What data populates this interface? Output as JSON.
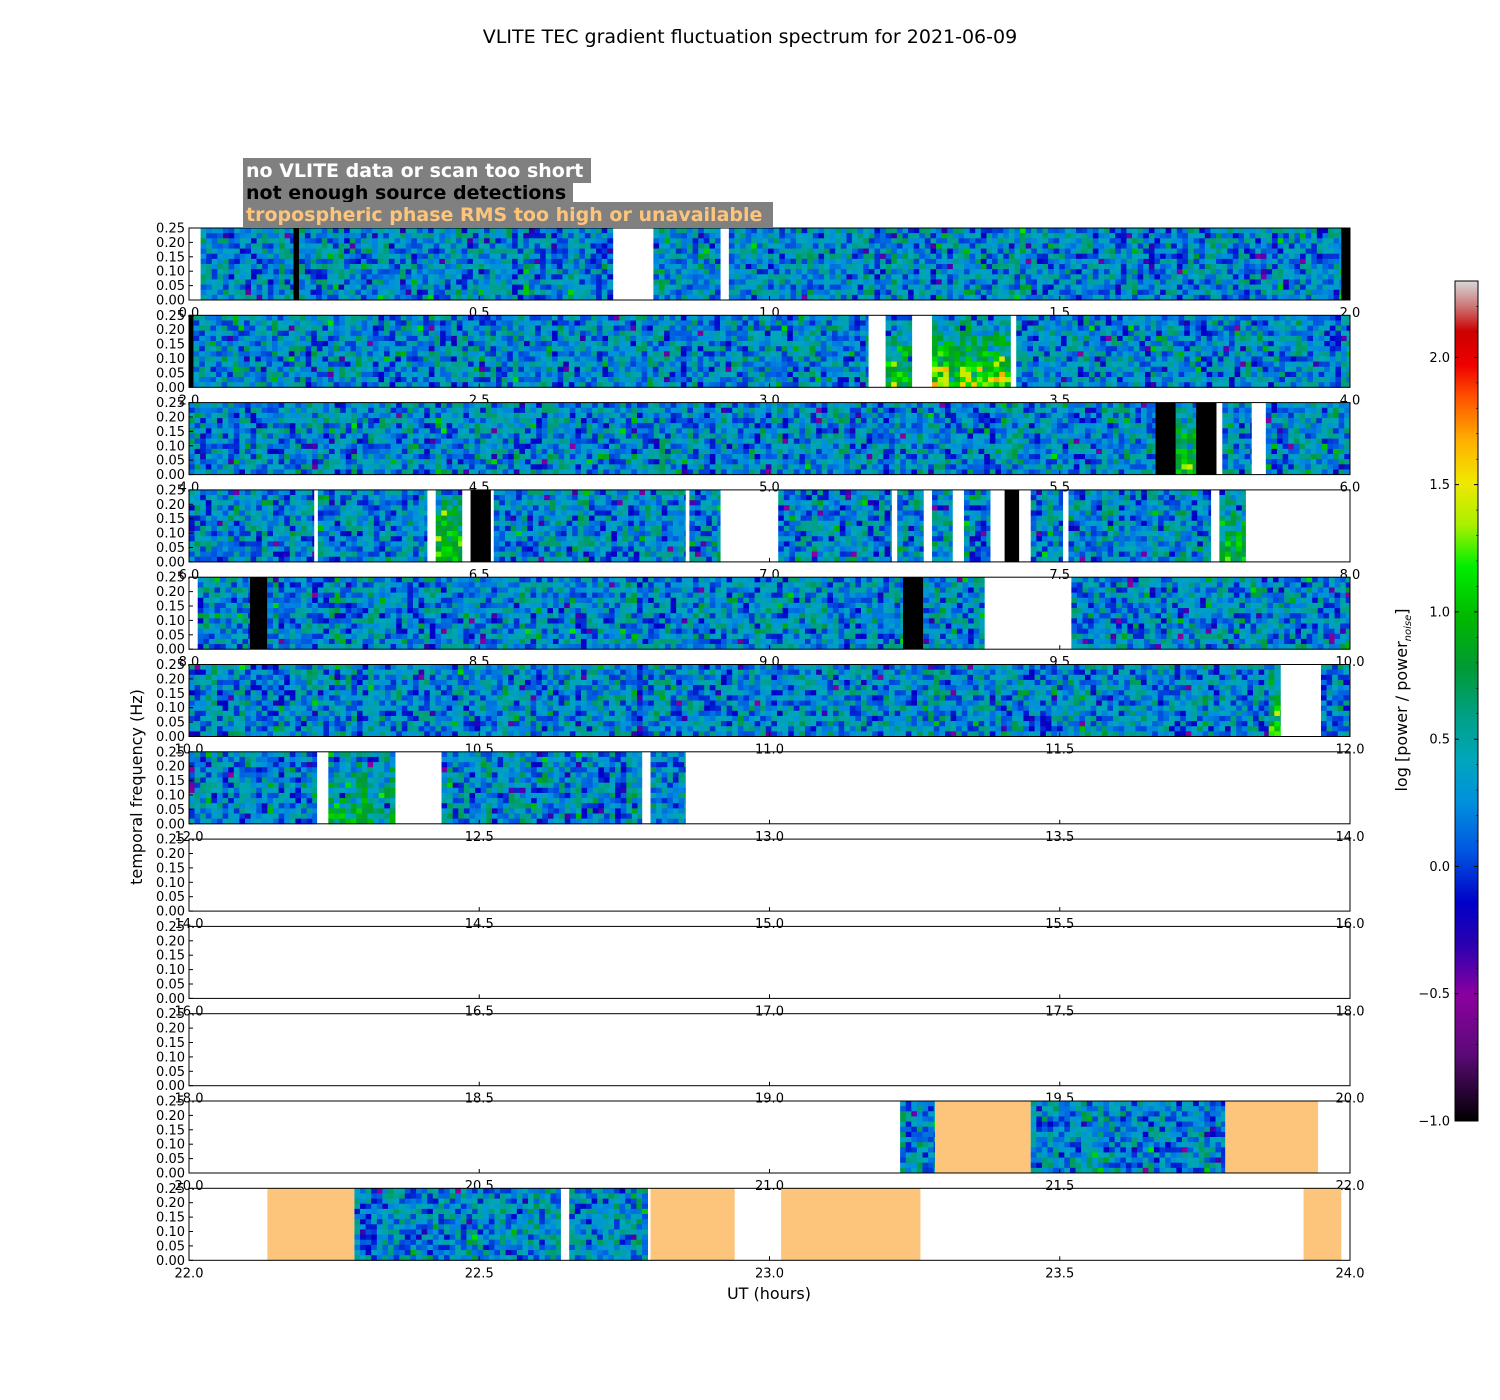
{
  "chart_data": {
    "type": "heatmap",
    "title": "VLITE TEC gradient fluctuation spectrum for 2021-06-09",
    "xlabel": "UT (hours)",
    "ylabel": "temporal frequency (Hz)",
    "ylim": [
      0.0,
      0.25
    ],
    "yticks": [
      "0.00",
      "0.05",
      "0.10",
      "0.15",
      "0.20",
      "0.25"
    ],
    "colorbar": {
      "label_main": "log [power / power",
      "label_sub": "noise",
      "label_end": "]",
      "range": [
        -1.0,
        2.3
      ],
      "ticks": [
        "−1.0",
        "−0.5",
        "0.0",
        "0.5",
        "1.0",
        "1.5",
        "2.0"
      ],
      "tick_values": [
        -1.0,
        -0.5,
        0.0,
        0.5,
        1.0,
        1.5,
        2.0
      ]
    },
    "legend": [
      {
        "text": "no VLITE data or scan too short",
        "color": "#ffffff",
        "flag": "nodata"
      },
      {
        "text": "not enough source detections",
        "color": "#000000",
        "flag": "nodetect"
      },
      {
        "text": "tropospheric phase RMS too high or unavailable",
        "color": "#fdc57c",
        "flag": "trop"
      }
    ],
    "panels": [
      {
        "xrange": [
          0,
          2
        ],
        "xticks": [
          "0.0",
          "0.5",
          "1.0",
          "1.5",
          "2.0"
        ],
        "segments": [
          {
            "s": 0.02,
            "e": 0.18,
            "k": "d"
          },
          {
            "s": 0.18,
            "e": 0.19,
            "k": "b"
          },
          {
            "s": 0.19,
            "e": 0.73,
            "k": "d"
          },
          {
            "s": 0.8,
            "e": 0.915,
            "k": "d"
          },
          {
            "s": 0.93,
            "e": 1.985,
            "k": "d"
          },
          {
            "s": 1.985,
            "e": 2.0,
            "k": "b"
          }
        ]
      },
      {
        "xrange": [
          2,
          4
        ],
        "xticks": [
          "2.0",
          "2.5",
          "3.0",
          "3.5",
          "4.0"
        ],
        "segments": [
          {
            "s": 2.0,
            "e": 2.008,
            "k": "b"
          },
          {
            "s": 2.008,
            "e": 3.17,
            "k": "d"
          },
          {
            "s": 3.2,
            "e": 3.245,
            "k": "d",
            "hot": 0.8
          },
          {
            "s": 3.28,
            "e": 3.415,
            "k": "d",
            "hot": 1.0
          },
          {
            "s": 3.425,
            "e": 4.0,
            "k": "d"
          }
        ]
      },
      {
        "xrange": [
          4,
          6
        ],
        "xticks": [
          "4.0",
          "4.5",
          "5.0",
          "5.5",
          "6.0"
        ],
        "segments": [
          {
            "s": 4.0,
            "e": 5.665,
            "k": "d"
          },
          {
            "s": 5.665,
            "e": 5.7,
            "k": "b"
          },
          {
            "s": 5.7,
            "e": 5.735,
            "k": "d",
            "hot": 0.8
          },
          {
            "s": 5.735,
            "e": 5.77,
            "k": "b"
          },
          {
            "s": 5.78,
            "e": 5.83,
            "k": "d"
          },
          {
            "s": 5.855,
            "e": 6.0,
            "k": "d"
          }
        ]
      },
      {
        "xrange": [
          6,
          8
        ],
        "xticks": [
          "6.0",
          "6.5",
          "7.0",
          "7.5",
          "8.0"
        ],
        "segments": [
          {
            "s": 6.0,
            "e": 6.215,
            "k": "d"
          },
          {
            "s": 6.222,
            "e": 6.41,
            "k": "d"
          },
          {
            "s": 6.425,
            "e": 6.47,
            "k": "d",
            "hot": 0.8
          },
          {
            "s": 6.485,
            "e": 6.52,
            "k": "b"
          },
          {
            "s": 6.525,
            "e": 6.855,
            "k": "d"
          },
          {
            "s": 6.862,
            "e": 6.915,
            "k": "d"
          },
          {
            "s": 7.015,
            "e": 7.21,
            "k": "d"
          },
          {
            "s": 7.22,
            "e": 7.265,
            "k": "d"
          },
          {
            "s": 7.28,
            "e": 7.315,
            "k": "d"
          },
          {
            "s": 7.335,
            "e": 7.38,
            "k": "d"
          },
          {
            "s": 7.405,
            "e": 7.43,
            "k": "b"
          },
          {
            "s": 7.45,
            "e": 7.505,
            "k": "d"
          },
          {
            "s": 7.515,
            "e": 7.76,
            "k": "d"
          },
          {
            "s": 7.775,
            "e": 7.82,
            "k": "d",
            "hot": 0.8
          }
        ]
      },
      {
        "xrange": [
          8,
          10
        ],
        "xticks": [
          "8.0",
          "8.5",
          "9.0",
          "9.5",
          "10.0"
        ],
        "segments": [
          {
            "s": 8.015,
            "e": 8.105,
            "k": "d"
          },
          {
            "s": 8.105,
            "e": 8.135,
            "k": "b"
          },
          {
            "s": 8.135,
            "e": 9.23,
            "k": "d"
          },
          {
            "s": 9.23,
            "e": 9.265,
            "k": "b"
          },
          {
            "s": 9.265,
            "e": 9.37,
            "k": "d"
          },
          {
            "s": 9.52,
            "e": 10.0,
            "k": "d"
          }
        ]
      },
      {
        "xrange": [
          10,
          12
        ],
        "xticks": [
          "10.0",
          "10.5",
          "11.0",
          "11.5",
          "12.0"
        ],
        "segments": [
          {
            "s": 10.0,
            "e": 11.86,
            "k": "d"
          },
          {
            "s": 11.86,
            "e": 11.88,
            "k": "d",
            "hot": 0.9
          },
          {
            "s": 11.95,
            "e": 12.0,
            "k": "d"
          }
        ]
      },
      {
        "xrange": [
          12,
          14
        ],
        "xticks": [
          "12.0",
          "12.5",
          "13.0",
          "13.5",
          "14.0"
        ],
        "segments": [
          {
            "s": 12.0,
            "e": 12.22,
            "k": "d"
          },
          {
            "s": 12.24,
            "e": 12.355,
            "k": "d",
            "hot": 0.5
          },
          {
            "s": 12.435,
            "e": 12.78,
            "k": "d"
          },
          {
            "s": 12.795,
            "e": 12.855,
            "k": "d"
          }
        ]
      },
      {
        "xrange": [
          14,
          16
        ],
        "xticks": [
          "14.0",
          "14.5",
          "15.0",
          "15.5",
          "16.0"
        ],
        "segments": []
      },
      {
        "xrange": [
          16,
          18
        ],
        "xticks": [
          "16.0",
          "16.5",
          "17.0",
          "17.5",
          "18.0"
        ],
        "segments": []
      },
      {
        "xrange": [
          18,
          20
        ],
        "xticks": [
          "18.0",
          "18.5",
          "19.0",
          "19.5",
          "20.0"
        ],
        "segments": []
      },
      {
        "xrange": [
          20,
          22
        ],
        "xticks": [
          "20.0",
          "20.5",
          "21.0",
          "21.5",
          "22.0"
        ],
        "segments": [
          {
            "s": 21.225,
            "e": 21.285,
            "k": "d"
          },
          {
            "s": 21.285,
            "e": 21.45,
            "k": "t"
          },
          {
            "s": 21.45,
            "e": 21.785,
            "k": "d"
          },
          {
            "s": 21.785,
            "e": 21.945,
            "k": "t"
          }
        ]
      },
      {
        "xrange": [
          22,
          24
        ],
        "xticks": [
          "22.0",
          "22.5",
          "23.0",
          "23.5",
          "24.0"
        ],
        "segments": [
          {
            "s": 22.135,
            "e": 22.285,
            "k": "t"
          },
          {
            "s": 22.285,
            "e": 22.64,
            "k": "d"
          },
          {
            "s": 22.655,
            "e": 22.79,
            "k": "d"
          },
          {
            "s": 22.795,
            "e": 22.94,
            "k": "t"
          },
          {
            "s": 23.02,
            "e": 23.26,
            "k": "t"
          },
          {
            "s": 23.92,
            "e": 23.985,
            "k": "t"
          }
        ]
      }
    ]
  }
}
